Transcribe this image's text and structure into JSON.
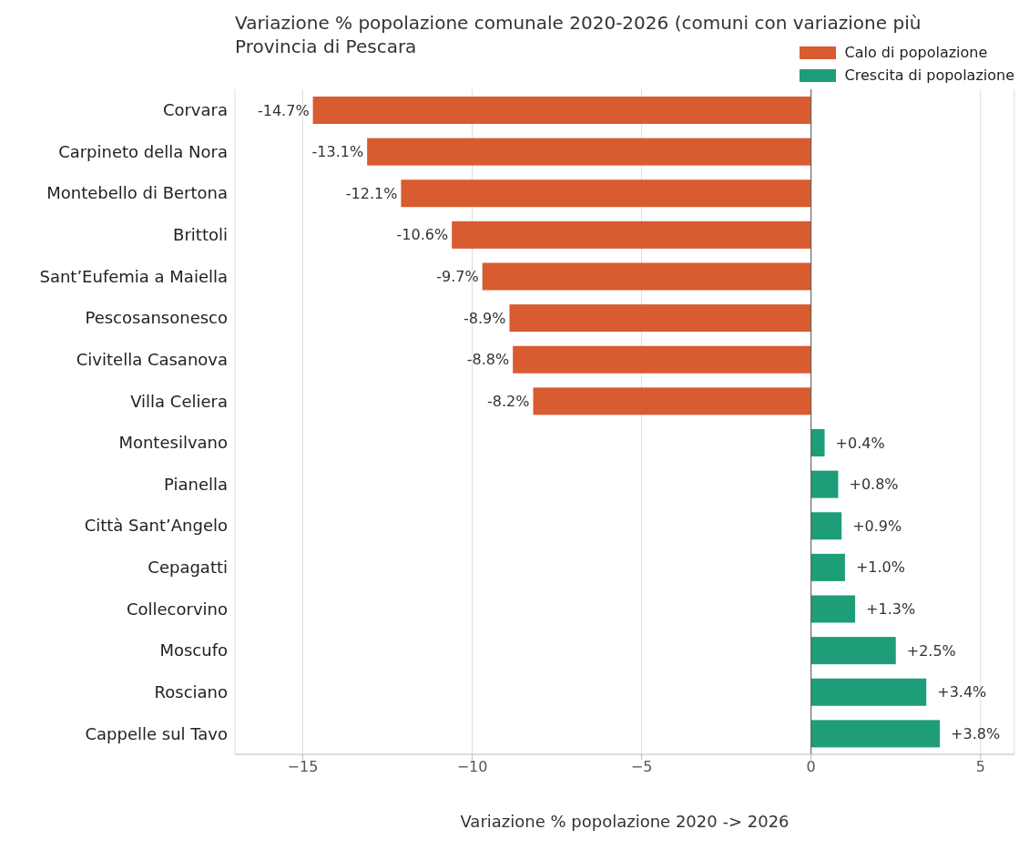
{
  "chart_data": {
    "type": "bar",
    "orientation": "horizontal",
    "title": "Variazione % popolazione comunale 2020-2026 (comuni con variazione più",
    "subtitle": "Provincia di Pescara",
    "xlabel": "Variazione % popolazione 2020 -> 2026",
    "categories": [
      "Corvara",
      "Carpineto della Nora",
      "Montebello di Bertona",
      "Brittoli",
      "Sant’Eufemia a Maiella",
      "Pescosansonesco",
      "Civitella Casanova",
      "Villa Celiera",
      "Montesilvano",
      "Pianella",
      "Città Sant’Angelo",
      "Cepagatti",
      "Collecorvino",
      "Moscufo",
      "Rosciano",
      "Cappelle sul Tavo"
    ],
    "series": [
      {
        "name": "Calo di popolazione",
        "color": "#d95b30",
        "values": [
          -14.7,
          -13.1,
          -12.1,
          -10.6,
          -9.7,
          -8.9,
          -8.8,
          -8.2,
          null,
          null,
          null,
          null,
          null,
          null,
          null,
          null
        ],
        "value_labels": [
          "-14.7%",
          "-13.1%",
          "-12.1%",
          "-10.6%",
          "-9.7%",
          "-8.9%",
          "-8.8%",
          "-8.2%",
          null,
          null,
          null,
          null,
          null,
          null,
          null,
          null
        ]
      },
      {
        "name": "Crescita di popolazione",
        "color": "#1e9e78",
        "values": [
          null,
          null,
          null,
          null,
          null,
          null,
          null,
          null,
          0.4,
          0.8,
          0.9,
          1.0,
          1.3,
          2.5,
          3.4,
          3.8
        ],
        "value_labels": [
          null,
          null,
          null,
          null,
          null,
          null,
          null,
          null,
          "+0.4%",
          "+0.8%",
          "+0.9%",
          "+1.0%",
          "+1.3%",
          "+2.5%",
          "+3.4%",
          "+3.8%"
        ]
      }
    ],
    "xlim": [
      -17,
      6
    ],
    "xticks": [
      -15,
      -10,
      -5,
      0,
      5
    ],
    "grid": "x",
    "legend": "top right",
    "ref_lines": [
      {
        "axis": "x",
        "value": 0,
        "color": "#555555"
      }
    ]
  }
}
